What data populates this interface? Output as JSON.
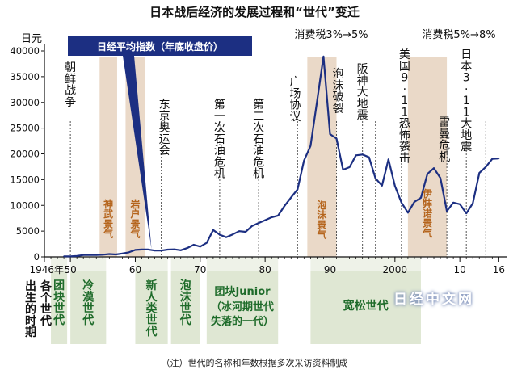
{
  "title": "日本战后经济的发展过程和“世代”变迁",
  "note": "（注）世代的名称和年数根据多次采访资料制成",
  "watermark": "日经中文网",
  "left_caption": [
    "出生的时期",
    "各个世代"
  ],
  "chart_data": {
    "type": "line",
    "title": "日本战后经济的发展过程和“世代”变迁",
    "ylabel": "日元",
    "xlabel": "",
    "ylim": [
      0,
      40000
    ],
    "xlim": [
      1946,
      2017
    ],
    "yticks": [
      0,
      5000,
      10000,
      15000,
      20000,
      25000,
      30000,
      35000,
      40000
    ],
    "ytick_labels": [
      "0",
      "5000",
      "10000",
      "15000",
      "20000",
      "25000",
      "30000",
      "35000",
      "40000"
    ],
    "xticks": [
      1946,
      1950,
      1960,
      1970,
      1980,
      1990,
      2000,
      2010,
      2016
    ],
    "xtick_labels": [
      "1946年",
      "50",
      "60",
      "70",
      "80",
      "90",
      "2000",
      "10",
      "16"
    ],
    "series": [
      {
        "name": "日经平均指数（年底收盘价）",
        "color": "#1c2f82",
        "x": [
          1949,
          1950,
          1951,
          1952,
          1953,
          1954,
          1955,
          1956,
          1957,
          1958,
          1959,
          1960,
          1961,
          1962,
          1963,
          1964,
          1965,
          1966,
          1967,
          1968,
          1969,
          1970,
          1971,
          1972,
          1973,
          1974,
          1975,
          1976,
          1977,
          1978,
          1979,
          1980,
          1981,
          1982,
          1983,
          1984,
          1985,
          1986,
          1987,
          1988,
          1989,
          1990,
          1991,
          1992,
          1993,
          1994,
          1995,
          1996,
          1997,
          1998,
          1999,
          2000,
          2001,
          2002,
          2003,
          2004,
          2005,
          2006,
          2007,
          2008,
          2009,
          2010,
          2011,
          2012,
          2013,
          2014,
          2015,
          2016
        ],
        "values": [
          109,
          101,
          166,
          362,
          377,
          356,
          425,
          549,
          474,
          666,
          874,
          1356,
          1432,
          1420,
          1225,
          1216,
          1417,
          1452,
          1283,
          1714,
          2359,
          1987,
          2714,
          5208,
          4307,
          3817,
          4359,
          4991,
          4866,
          6002,
          6570,
          7116,
          7682,
          8017,
          9894,
          11543,
          13113,
          18701,
          21564,
          30159,
          38916,
          23849,
          22984,
          16925,
          17417,
          19723,
          19868,
          19361,
          15259,
          13842,
          18934,
          13786,
          10543,
          8579,
          10677,
          11489,
          16111,
          17226,
          15308,
          8860,
          10546,
          10229,
          8455,
          10395,
          16291,
          17451,
          19034,
          19114
        ]
      }
    ],
    "event_labels": [
      {
        "text": "朝鲜战争",
        "year": 1950
      },
      {
        "text": "东京奥运会",
        "year": 1964
      },
      {
        "text": "第一次石油危机",
        "year": 1973
      },
      {
        "text": "第二次石油危机",
        "year": 1979
      },
      {
        "text": "广场协议",
        "year": 1985
      },
      {
        "text": "泡沫破裂",
        "year": 1991
      },
      {
        "text": "阪神大地震",
        "year": 1995
      },
      {
        "text": "美国9·11恐怖袭击",
        "year": 2001
      },
      {
        "text": "雷曼危机",
        "year": 2008
      },
      {
        "text": "日本3·11大地震",
        "year": 2011
      }
    ],
    "tax_labels": [
      {
        "text": "消费税3%→5%",
        "year": 1997
      },
      {
        "text": "消费税5%→8%",
        "year": 2014
      }
    ],
    "booms": [
      {
        "text": "神武景气",
        "from": 1954.5,
        "to": 1957.2,
        "color": "#ead9c8",
        "text_color": "#b5651d"
      },
      {
        "text": "岩户景气",
        "from": 1958.5,
        "to": 1961.5,
        "color": "#ead9c8",
        "text_color": "#b5651d"
      },
      {
        "text": "泡沫景气",
        "from": 1986.5,
        "to": 1991,
        "color": "#ead9c8",
        "text_color": "#b5651d"
      },
      {
        "text": "伊弉诺景气",
        "from": 2002,
        "to": 2008,
        "color": "#ead9c8",
        "text_color": "#b5651d"
      }
    ],
    "generations": [
      {
        "text": "团块世代",
        "from": 1947,
        "to": 1949.5
      },
      {
        "text": "冷漠世代",
        "from": 1950,
        "to": 1955.5
      },
      {
        "text": "新人类世代",
        "from": 1960,
        "to": 1965
      },
      {
        "text": "泡沫世代",
        "from": 1965.5,
        "to": 1970
      },
      {
        "text": "团块Junior",
        "sub": "（冰河期世代",
        "sub2": "失落的一代）",
        "from": 1971,
        "to": 1982
      },
      {
        "text": "宽松世代",
        "from": 1987,
        "to": 2004
      }
    ],
    "grid": false
  }
}
